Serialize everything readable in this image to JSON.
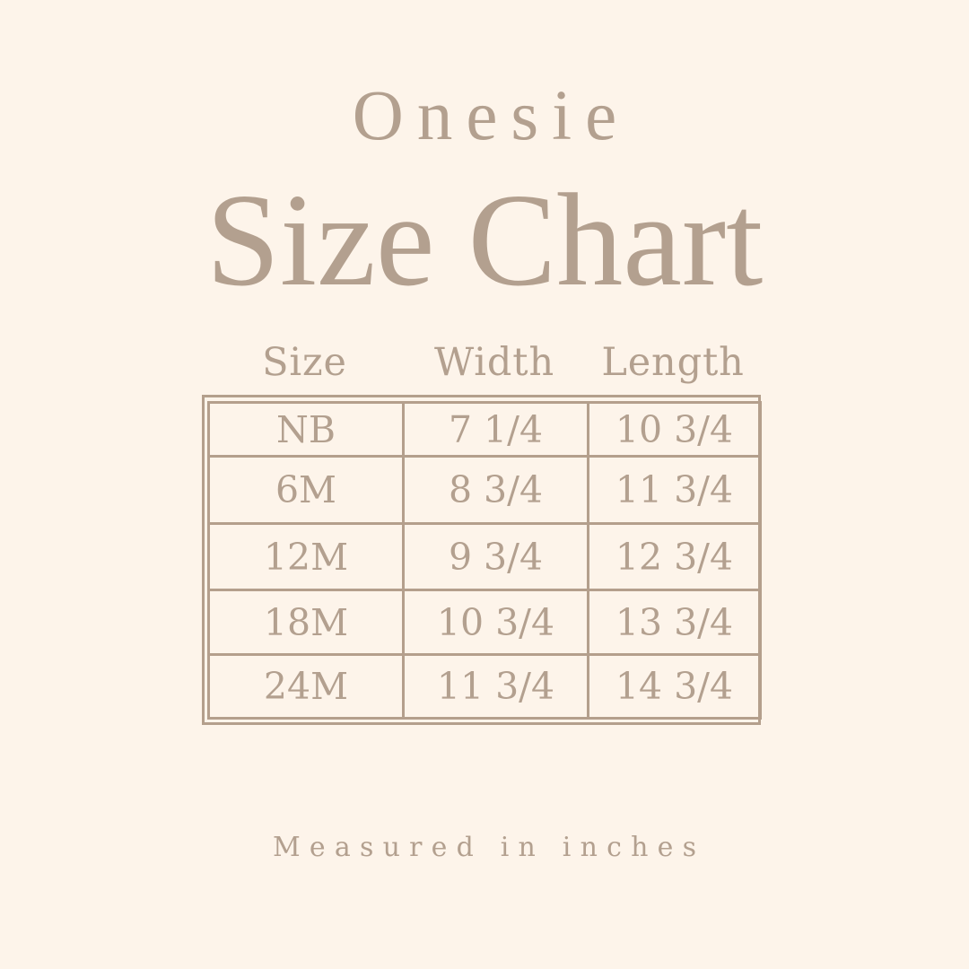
{
  "colors": {
    "background": "#fdf4ea",
    "text": "#b3a08f",
    "line": "#b49f8c"
  },
  "header": {
    "eyebrow": "Onesie",
    "title": "Size Chart"
  },
  "chart_data": {
    "type": "table",
    "title": "Onesie Size Chart",
    "columns": [
      "Size",
      "Width",
      "Length"
    ],
    "rows": [
      [
        "NB",
        "7 1/4",
        "10 3/4"
      ],
      [
        "6M",
        "8 3/4",
        "11 3/4"
      ],
      [
        "12M",
        "9 3/4",
        "12 3/4"
      ],
      [
        "18M",
        "10 3/4",
        "13 3/4"
      ],
      [
        "24M",
        "11 3/4",
        "14 3/4"
      ]
    ],
    "units_note": "Measured in inches"
  },
  "footer": {
    "note": "Measured in inches"
  }
}
